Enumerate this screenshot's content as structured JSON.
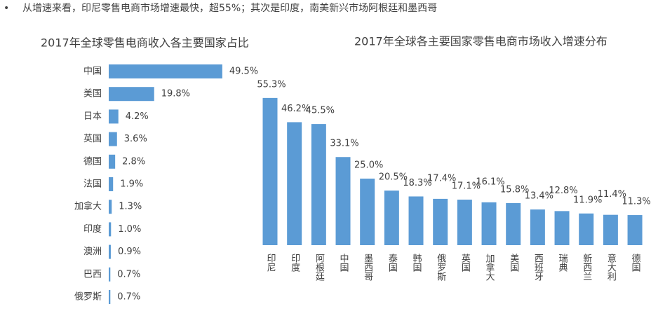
{
  "bullet": "从增速来看，印尼零售电商市场增速最快，超55%；其次是印度，南美新兴市场阿根廷和墨西哥",
  "chart_data": [
    {
      "type": "hbar",
      "title": "2017年全球零售电商收入各主要国家占比",
      "categories": [
        "中国",
        "美国",
        "日本",
        "英国",
        "德国",
        "法国",
        "加拿大",
        "印度",
        "澳洲",
        "巴西",
        "俄罗斯"
      ],
      "values": [
        49.5,
        19.8,
        4.2,
        3.6,
        2.8,
        1.9,
        1.3,
        1.0,
        0.9,
        0.7,
        0.7
      ],
      "value_labels": [
        "49.5%",
        "19.8%",
        "4.2%",
        "3.6%",
        "2.8%",
        "1.9%",
        "1.3%",
        "1.0%",
        "0.9%",
        "0.7%",
        "0.7%"
      ],
      "color": "#5b9bd5"
    },
    {
      "type": "bar",
      "title": "2017年全球各主要国家零售电商市场收入增速分布",
      "categories": [
        "印尼",
        "印度",
        "阿根廷",
        "中国",
        "墨西哥",
        "泰国",
        "韩国",
        "俄罗斯",
        "英国",
        "加拿大",
        "美国",
        "西班牙",
        "瑞典",
        "新西兰",
        "意大利",
        "德国"
      ],
      "values": [
        55.3,
        46.2,
        45.5,
        33.1,
        25.0,
        20.5,
        18.3,
        17.4,
        17.1,
        16.1,
        15.8,
        13.4,
        12.8,
        11.9,
        11.4,
        11.3
      ],
      "value_labels": [
        "55.3%",
        "46.2%",
        "45.5%",
        "33.1%",
        "25.0%",
        "20.5%",
        "18.3%",
        "17.4%",
        "17.1%",
        "16.1%",
        "15.8%",
        "13.4%",
        "12.8%",
        "11.9%",
        "11.4%",
        "11.3%"
      ],
      "color": "#5b9bd5"
    }
  ]
}
